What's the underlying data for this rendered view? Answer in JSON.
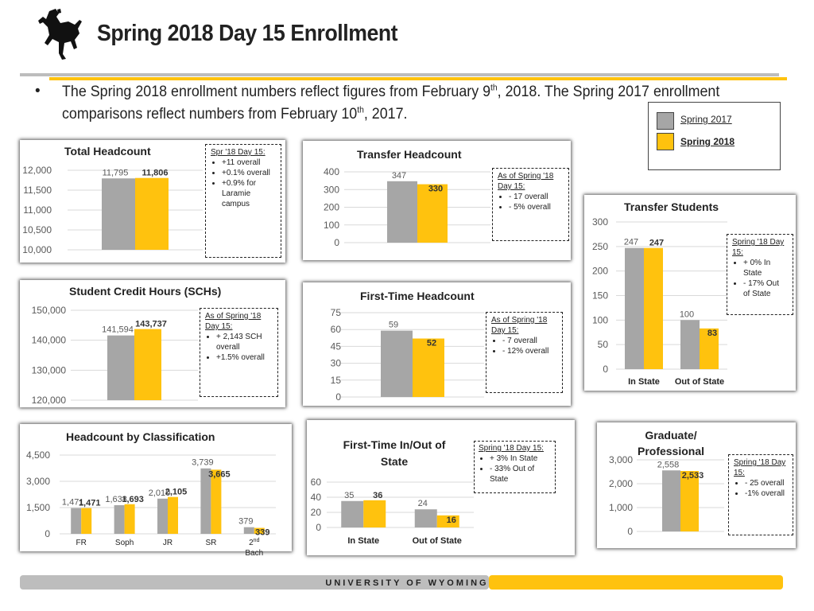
{
  "header": {
    "title": "Spring 2018 Day 15 Enrollment",
    "intro": {
      "p1": "The Spring 2018 enrollment numbers reflect figures from February 9",
      "sup1": "th",
      "p2": ", 2018.  The Spring 2017 enrollment comparisons reflect numbers from February 10",
      "sup2": "th",
      "p3": ", 2017."
    },
    "bullet": "•"
  },
  "colors": {
    "s2017": "#a6a6a6",
    "s2018": "#ffc20e",
    "gridline": "#d9d9d9",
    "footer_gray": "#bdbdbd"
  },
  "legend": {
    "items": [
      {
        "label": "Spring 2017",
        "color": "#a6a6a6"
      },
      {
        "label": "Spring 2018",
        "color": "#ffc20e"
      }
    ]
  },
  "footer": "UNIVERSITY OF WYOMING",
  "chart_data": [
    {
      "id": "total",
      "type": "bar",
      "title": "Total Headcount",
      "categories": [
        ""
      ],
      "series": [
        {
          "name": "Spring 2017",
          "values": [
            11795
          ]
        },
        {
          "name": "Spring 2018",
          "values": [
            11806
          ]
        }
      ],
      "labels": [
        [
          "11,795"
        ],
        [
          "11,806"
        ]
      ],
      "ylim": [
        10000,
        12000
      ],
      "yticks": [
        "10,000",
        "10,500",
        "11,000",
        "11,500",
        "12,000"
      ],
      "note": {
        "head": "Spr '18 Day 15:",
        "items": [
          "+11 overall",
          "+0.1% overall",
          "+0.9%  for Laramie campus"
        ]
      }
    },
    {
      "id": "transfer",
      "type": "bar",
      "title": "Transfer Headcount",
      "categories": [
        ""
      ],
      "series": [
        {
          "name": "Spring 2017",
          "values": [
            347
          ]
        },
        {
          "name": "Spring 2018",
          "values": [
            330
          ]
        }
      ],
      "labels": [
        [
          "347"
        ],
        [
          "330"
        ]
      ],
      "ylim": [
        0,
        400
      ],
      "yticks": [
        "0",
        "100",
        "200",
        "300",
        "400"
      ],
      "note": {
        "head": "As of Spring '18 Day 15:",
        "items": [
          "- 17 overall",
          "- 5% overall"
        ]
      }
    },
    {
      "id": "transfer_students",
      "type": "bar",
      "title": "Transfer Students",
      "categories": [
        "In State",
        "Out of State"
      ],
      "series": [
        {
          "name": "Spring 2017",
          "values": [
            247,
            100
          ]
        },
        {
          "name": "Spring 2018",
          "values": [
            247,
            83
          ]
        }
      ],
      "labels": [
        [
          "247",
          "100"
        ],
        [
          "247",
          "83"
        ]
      ],
      "ylim": [
        0,
        300
      ],
      "yticks": [
        "0",
        "50",
        "100",
        "150",
        "200",
        "250",
        "300"
      ],
      "note": {
        "head": "Spring '18 Day 15:",
        "items": [
          "+ 0% In State",
          "- 17% Out of State"
        ]
      }
    },
    {
      "id": "sch",
      "type": "bar",
      "title": "Student Credit Hours (SCHs)",
      "categories": [
        ""
      ],
      "series": [
        {
          "name": "Spring 2017",
          "values": [
            141594
          ]
        },
        {
          "name": "Spring 2018",
          "values": [
            143737
          ]
        }
      ],
      "labels": [
        [
          "141,594"
        ],
        [
          "143,737"
        ]
      ],
      "ylim": [
        120000,
        150000
      ],
      "yticks": [
        "120,000",
        "130,000",
        "140,000",
        "150,000"
      ],
      "note": {
        "head": "As of Spring '18 Day 15:",
        "items": [
          "+ 2,143 SCH overall",
          "+1.5% overall"
        ]
      }
    },
    {
      "id": "firsttime",
      "type": "bar",
      "title": "First-Time Headcount",
      "categories": [
        ""
      ],
      "series": [
        {
          "name": "Spring 2017",
          "values": [
            59
          ]
        },
        {
          "name": "Spring 2018",
          "values": [
            52
          ]
        }
      ],
      "labels": [
        [
          "59"
        ],
        [
          "52"
        ]
      ],
      "ylim": [
        0,
        75
      ],
      "yticks": [
        "0",
        "15",
        "30",
        "45",
        "60",
        "75"
      ],
      "note": {
        "head": "As of Spring '18 Day 15:",
        "items": [
          "- 7 overall",
          "- 12% overall"
        ]
      }
    },
    {
      "id": "classification",
      "type": "bar",
      "title": "Headcount by Classification",
      "categories": [
        "FR",
        "Soph",
        "JR",
        "SR",
        "2nd Bach"
      ],
      "category_parts": [
        [
          "FR"
        ],
        [
          "Soph"
        ],
        [
          "JR"
        ],
        [
          "SR"
        ],
        [
          "2",
          "nd",
          "Bach"
        ]
      ],
      "series": [
        {
          "name": "Spring 2017",
          "values": [
            1471,
            1638,
            2010,
            3739,
            379
          ]
        },
        {
          "name": "Spring 2018",
          "values": [
            1471,
            1693,
            2105,
            3665,
            339
          ]
        }
      ],
      "labels": [
        [
          "1,471",
          "1,638",
          "2,010",
          "3,739",
          "379"
        ],
        [
          "1,471",
          "1,693",
          "2,105",
          "3,665",
          "339"
        ]
      ],
      "ylim": [
        0,
        4500
      ],
      "yticks": [
        "0",
        "1,500",
        "3,000",
        "4,500"
      ]
    },
    {
      "id": "ft_inout",
      "type": "bar",
      "title": "First-Time In/Out of State",
      "title_lines": [
        "First-Time In/Out of",
        "State"
      ],
      "categories": [
        "In State",
        "Out of State"
      ],
      "series": [
        {
          "name": "Spring 2017",
          "values": [
            35,
            24
          ]
        },
        {
          "name": "Spring 2018",
          "values": [
            36,
            16
          ]
        }
      ],
      "labels": [
        [
          "35",
          "24"
        ],
        [
          "36",
          "16"
        ]
      ],
      "ylim": [
        0,
        60
      ],
      "yticks": [
        "0",
        "20",
        "40",
        "60"
      ],
      "note": {
        "head": "Spring '18 Day 15:",
        "items": [
          "+ 3% In State",
          "- 33% Out of State"
        ]
      }
    },
    {
      "id": "grad",
      "type": "bar",
      "title": "Graduate/ Professional",
      "title_lines": [
        "Graduate/",
        "Professional"
      ],
      "categories": [
        ""
      ],
      "series": [
        {
          "name": "Spring 2017",
          "values": [
            2558
          ]
        },
        {
          "name": "Spring 2018",
          "values": [
            2533
          ]
        }
      ],
      "labels": [
        [
          "2,558"
        ],
        [
          "2,533"
        ]
      ],
      "ylim": [
        0,
        3000
      ],
      "yticks": [
        "0",
        "1,000",
        "2,000",
        "3,000"
      ],
      "note": {
        "head": "Spring '18 Day 15:",
        "items": [
          "- 25 overall",
          "-1% overall"
        ]
      }
    }
  ]
}
